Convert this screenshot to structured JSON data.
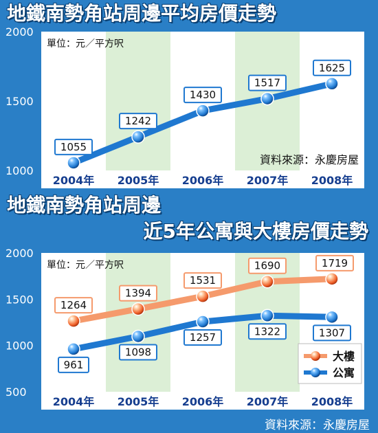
{
  "header": {
    "title1": "地鐵南勢角站周邊平均房價走勢",
    "title2_line1": "地鐵南勢角站周邊",
    "title2_line2": "近5年公寓與大樓房價走勢"
  },
  "colors": {
    "background": "#2a7fc6",
    "plot_band_light": "#ffffff",
    "plot_band_green": "#dcefd6",
    "apartment_line": "#1f78d0",
    "building_line": "#f59a6c",
    "tick_label_x": "#163e8f"
  },
  "chart_data": [
    {
      "type": "line",
      "title": "地鐵南勢角站周邊平均房價走勢",
      "unit_label": "單位：元／平方呎",
      "source_label": "資料來源：永慶房屋",
      "categories": [
        "2004年",
        "2005年",
        "2006年",
        "2007年",
        "2008年"
      ],
      "y_ticks": [
        "2000",
        "1500",
        "1000"
      ],
      "ylim": [
        1000,
        2000
      ],
      "series": [
        {
          "values": [
            1055,
            1242,
            1430,
            1517,
            1625
          ],
          "labels": [
            "1055",
            "1242",
            "1430",
            "1517",
            "1625"
          ],
          "color": "#1f78d0"
        }
      ],
      "grid": false,
      "legend": "none"
    },
    {
      "type": "line",
      "title": "地鐵南勢角站周邊 近5年公寓與大樓房價走勢",
      "unit_label": "單位：元／平方呎",
      "categories": [
        "2004年",
        "2005年",
        "2006年",
        "2007年",
        "2008年"
      ],
      "y_ticks": [
        "2000",
        "1500",
        "1000",
        "500"
      ],
      "ylim": [
        500,
        2000
      ],
      "series": [
        {
          "name": "大樓",
          "values": [
            1264,
            1394,
            1531,
            1690,
            1719
          ],
          "labels": [
            "1264",
            "1394",
            "1531",
            "1690",
            "1719"
          ],
          "color": "#f59a6c"
        },
        {
          "name": "公寓",
          "values": [
            961,
            1098,
            1257,
            1322,
            1307
          ],
          "labels": [
            "961",
            "1098",
            "1257",
            "1322",
            "1307"
          ],
          "color": "#1f78d0"
        }
      ],
      "grid": false,
      "legend": "bottom-right"
    }
  ],
  "footer": {
    "source": "資料來源：永慶房屋"
  }
}
